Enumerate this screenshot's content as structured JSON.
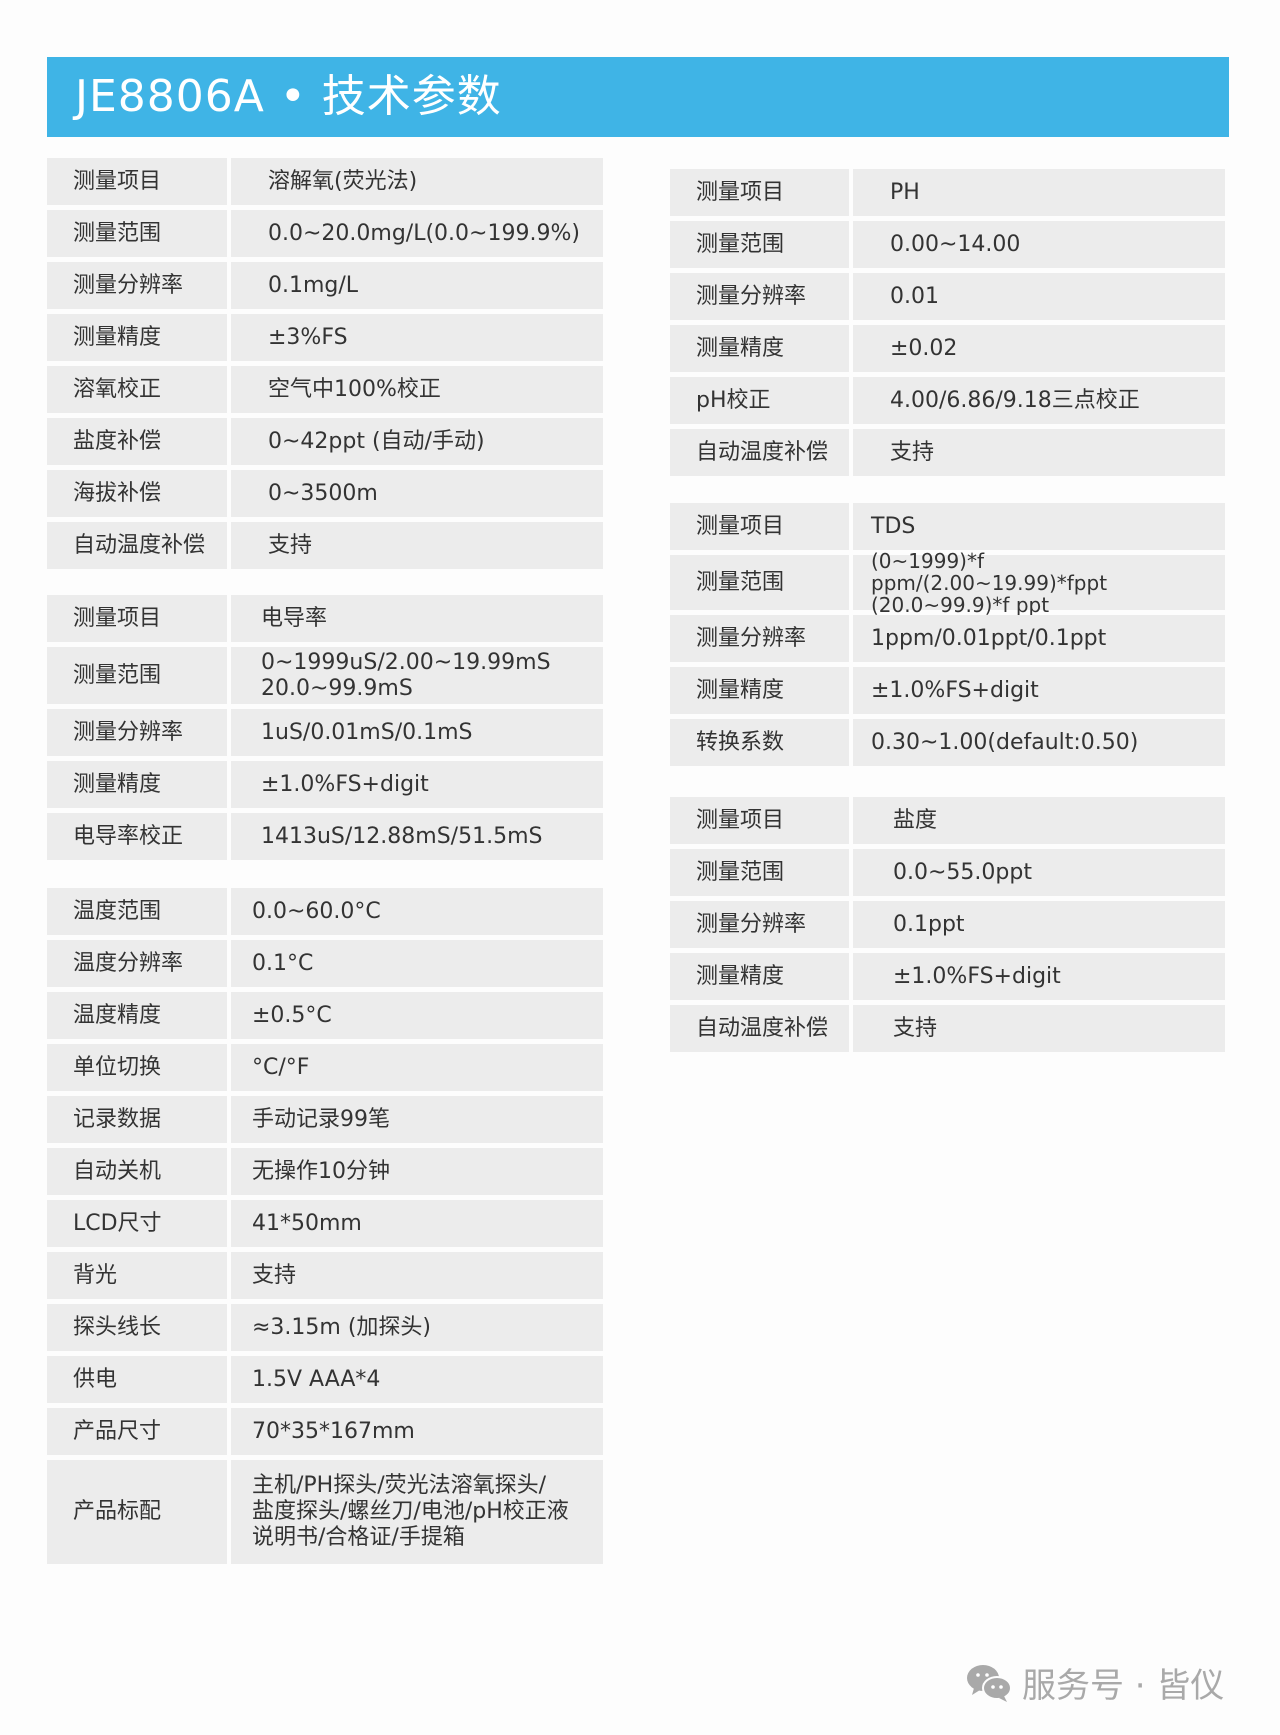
{
  "header": {
    "title": "JE8806A • 技术参数",
    "color": "#3fb4e6"
  },
  "groups": [
    {
      "id": "do",
      "side": "left",
      "rows": [
        [
          "测量项目",
          "溶解氧(荧光法)"
        ],
        [
          "测量范围",
          "0.0~20.0mg/L(0.0~199.9%)"
        ],
        [
          "测量分辨率",
          "0.1mg/L"
        ],
        [
          "测量精度",
          "±3%FS"
        ],
        [
          "溶氧校正",
          "空气中100%校正"
        ],
        [
          "盐度补偿",
          "0~42ppt (自动/手动)"
        ],
        [
          "海拔补偿",
          "0~3500m"
        ],
        [
          "自动温度补偿",
          "支持"
        ]
      ]
    },
    {
      "id": "conductivity",
      "side": "left",
      "rows": [
        [
          "测量项目",
          "电导率"
        ],
        [
          "测量范围",
          "0~1999uS/2.00~19.99mS\n20.0~99.9mS"
        ],
        [
          "测量分辨率",
          "1uS/0.01mS/0.1mS"
        ],
        [
          "测量精度",
          "±1.0%FS+digit"
        ],
        [
          "电导率校正",
          "1413uS/12.88mS/51.5mS"
        ]
      ]
    },
    {
      "id": "general",
      "side": "left",
      "rows": [
        [
          "温度范围",
          "0.0~60.0°C"
        ],
        [
          "温度分辨率",
          "0.1°C"
        ],
        [
          "温度精度",
          "±0.5°C"
        ],
        [
          "单位切换",
          "°C/°F"
        ],
        [
          "记录数据",
          "手动记录99笔"
        ],
        [
          "自动关机",
          "无操作10分钟"
        ],
        [
          "LCD尺寸",
          "41*50mm"
        ],
        [
          "背光",
          "支持"
        ],
        [
          "探头线长",
          "≈3.15m (加探头)"
        ],
        [
          "供电",
          "1.5V AAA*4"
        ],
        [
          "产品尺寸",
          "70*35*167mm"
        ],
        [
          "产品标配",
          "主机/PH探头/荧光法溶氧探头/\n盐度探头/螺丝刀/电池/pH校正液\n说明书/合格证/手提箱"
        ]
      ]
    },
    {
      "id": "ph",
      "side": "right",
      "rows": [
        [
          "测量项目",
          "PH"
        ],
        [
          "测量范围",
          "0.00~14.00"
        ],
        [
          "测量分辨率",
          "0.01"
        ],
        [
          "测量精度",
          "±0.02"
        ],
        [
          "pH校正",
          "4.00/6.86/9.18三点校正"
        ],
        [
          "自动温度补偿",
          "支持"
        ]
      ]
    },
    {
      "id": "tds",
      "side": "right",
      "rows": [
        [
          "测量项目",
          "TDS"
        ],
        [
          "测量范围",
          "(0~1999)*f ppm/(2.00~19.99)*fppt\n(20.0~99.9)*f ppt"
        ],
        [
          "测量分辨率",
          "1ppm/0.01ppt/0.1ppt"
        ],
        [
          "测量精度",
          "±1.0%FS+digit"
        ],
        [
          "转换系数",
          "0.30~1.00(default:0.50)"
        ]
      ]
    },
    {
      "id": "salinity",
      "side": "right",
      "rows": [
        [
          "测量项目",
          "盐度"
        ],
        [
          "测量范围",
          "0.0~55.0ppt"
        ],
        [
          "测量分辨率",
          "0.1ppt"
        ],
        [
          "测量精度",
          "±1.0%FS+digit"
        ],
        [
          "自动温度补偿",
          "支持"
        ]
      ]
    }
  ],
  "watermark": {
    "icon": "wechat-icon",
    "text": "服务号 · 皆仪"
  }
}
